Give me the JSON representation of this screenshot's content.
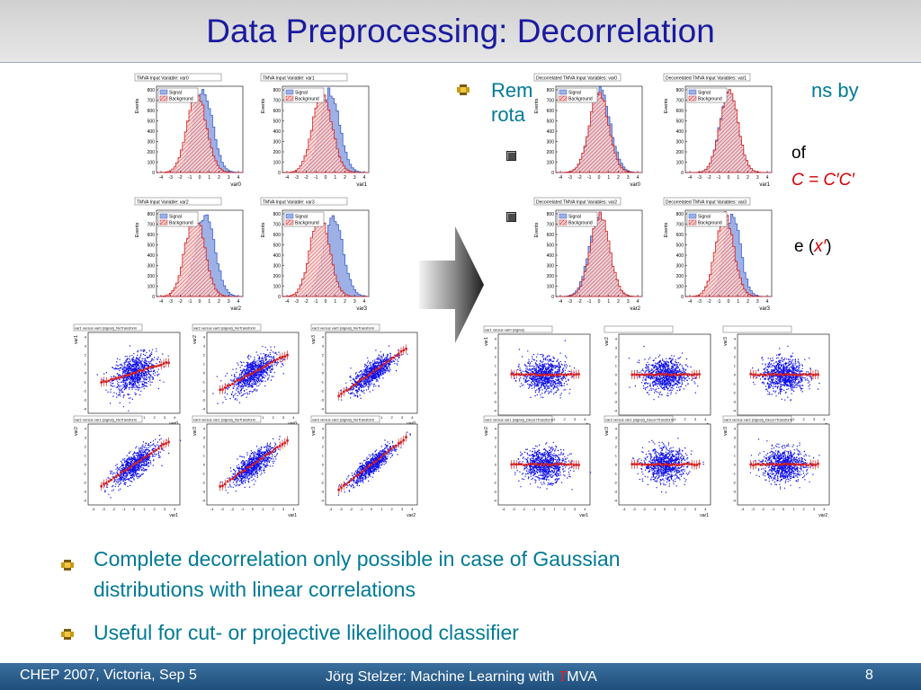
{
  "title": "Data Preprocessing: Decorrelation",
  "top_bullet": {
    "line1_visible": "Rem",
    "line1_tail": "ns by",
    "line2_visible": "rota"
  },
  "sub_bullets": [
    {
      "tail": "of",
      "formula": "C = C′C′"
    },
    {
      "tail_prefix": "e (",
      "var": "x′",
      "tail_suffix": ")"
    }
  ],
  "bullets": [
    {
      "text_line1": "Complete decorrelation only possible in case of Gaussian",
      "text_line2": "distributions with linear correlations"
    },
    {
      "text_line1": "Useful for cut- or projective likelihood classifier"
    }
  ],
  "left_hists": [
    {
      "title": "TMVA Input Variable: var0",
      "xlabel": "var0"
    },
    {
      "title": "TMVA Input Variable: var1",
      "xlabel": "var1"
    },
    {
      "title": "TMVA Input Variable: var2",
      "xlabel": "var2"
    },
    {
      "title": "TMVA Input Variable: var3",
      "xlabel": "var3"
    }
  ],
  "right_hists": [
    {
      "title": "Decorrelated TMVA Input Variables: var0",
      "xlabel": "var0"
    },
    {
      "title": "Decorrelated TMVA Input Variables: var1",
      "xlabel": "var1"
    },
    {
      "title": "Decorrelated TMVA Input Variables: var2",
      "xlabel": "var2"
    },
    {
      "title": "Decorrelated TMVA Input Variables: var3",
      "xlabel": "var3"
    }
  ],
  "hist_common": {
    "ylabel": "Events",
    "legend_signal": "Signal",
    "legend_background": "Background",
    "yticks": [
      "0",
      "100",
      "200",
      "300",
      "400",
      "500",
      "600",
      "700",
      "800"
    ],
    "xticks": [
      "-4",
      "-3",
      "-2",
      "-1",
      "0",
      "1",
      "2",
      "3",
      "4"
    ]
  },
  "left_scatters": [
    {
      "title": "var1 versus var0 (signal)_NoTransform",
      "xlabel": "var0",
      "ylabel": "var1"
    },
    {
      "title": "var2 versus var0 (signal)_NoTransform",
      "xlabel": "var0",
      "ylabel": "var2"
    },
    {
      "title": "var3 versus var0 (signal)_NoTransform",
      "xlabel": "var0",
      "ylabel": "var3"
    },
    {
      "title": "var2 versus var1 (signal)_NoTransform",
      "xlabel": "var1",
      "ylabel": "var2"
    },
    {
      "title": "var3 versus var1 (signal)_NoTransform",
      "xlabel": "var1",
      "ylabel": "var3"
    },
    {
      "title": "var3 versus var2 (signal)_NoTransform",
      "xlabel": "var2",
      "ylabel": "var3"
    }
  ],
  "right_scatters": [
    {
      "title": "var1 versus var0 (signal)",
      "xlabel": "var0",
      "ylabel": "var1"
    },
    {
      "title": "",
      "xlabel": "var0",
      "ylabel": "var2"
    },
    {
      "title": "",
      "xlabel": "var0",
      "ylabel": "var3"
    },
    {
      "title": "var2 versus var1 (signal)_DecorrTransform",
      "xlabel": "var1",
      "ylabel": "var2"
    },
    {
      "title": "var3 versus var1 (signal)_DecorrTransform",
      "xlabel": "var1",
      "ylabel": "var3"
    },
    {
      "title": "var3 versus var2 (signal)_DecorrTransform",
      "xlabel": "var2",
      "ylabel": "var3"
    }
  ],
  "scatter_ticks": [
    "-4",
    "-3",
    "-2",
    "-1",
    "0",
    "1",
    "2",
    "3",
    "4"
  ],
  "footer": {
    "left": "CHEP 2007, Victoria, Sep 5",
    "center_prefix": "Jörg Stelzer: Machine Learning with ",
    "logo_t": "T",
    "logo_rest": "MVA",
    "page": "8"
  },
  "colors": {
    "title": "#1a1aa0",
    "bullet_text": "#007a96",
    "signal": "#3b5fc8",
    "background": "#d42020",
    "scatter": "#1010e8",
    "footer": "#2a5d8c"
  }
}
